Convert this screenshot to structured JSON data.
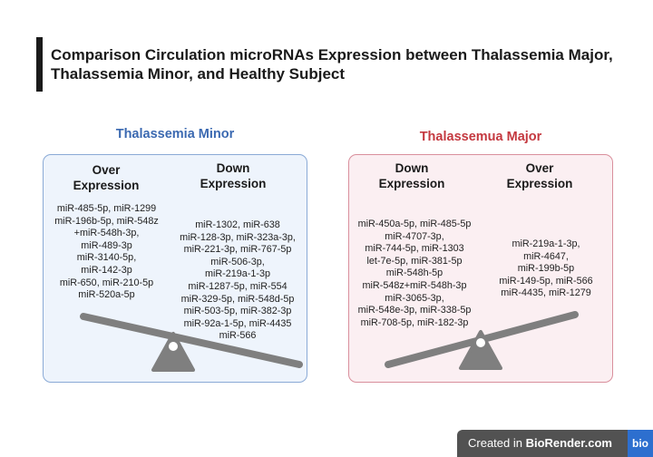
{
  "title": "Comparison Circulation microRNAs Expression between Thalassemia Major, Thalassemia Minor, and Healthy Subject",
  "colors": {
    "minor": "#3b69b1",
    "major": "#c4383f",
    "seesaw": "#7f7f7f"
  },
  "icons": {
    "seesaw": "seesaw-balance-icon"
  },
  "minor": {
    "title": "Thalassemia Minor",
    "over": {
      "heading_line1": "Over",
      "heading_line2": "Expression",
      "genes": [
        "miR-485-5p, miR-1299",
        "miR-196b-5p, miR-548z",
        "+miR-548h-3p,",
        "miR-489-3p",
        "miR-3140-5p,",
        "miR-142-3p",
        "miR-650, miR-210-5p",
        "miR-520a-5p"
      ]
    },
    "down": {
      "heading_line1": "Down",
      "heading_line2": "Expression",
      "genes": [
        "miR-1302, miR-638",
        "miR-128-3p, miR-323a-3p,",
        "miR-221-3p, miR-767-5p",
        "miR-506-3p,",
        "miR-219a-1-3p",
        "miR-1287-5p, miR-554",
        "miR-329-5p, miR-548d-5p",
        "miR-503-5p, miR-382-3p",
        "miR-92a-1-5p, miR-4435",
        "miR-566"
      ]
    }
  },
  "major": {
    "title": "Thalassemua Major",
    "down": {
      "heading_line1": "Down",
      "heading_line2": "Expression",
      "genes": [
        "miR-450a-5p, miR-485-5p",
        "miR-4707-3p,",
        "miR-744-5p, miR-1303",
        "let-7e-5p, miR-381-5p",
        "miR-548h-5p",
        "miR-548z+miR-548h-3p",
        "miR-3065-3p,",
        "miR-548e-3p, miR-338-5p",
        "miR-708-5p, miR-182-3p"
      ]
    },
    "over": {
      "heading_line1": "Over",
      "heading_line2": "Expression",
      "genes": [
        "miR-219a-1-3p,",
        "miR-4647,",
        "miR-199b-5p",
        "miR-149-5p, miR-566",
        "miR-4435, miR-1279"
      ]
    }
  },
  "watermark": {
    "prefix": "Created in ",
    "brand": "BioRender.com",
    "logo": "bio"
  }
}
